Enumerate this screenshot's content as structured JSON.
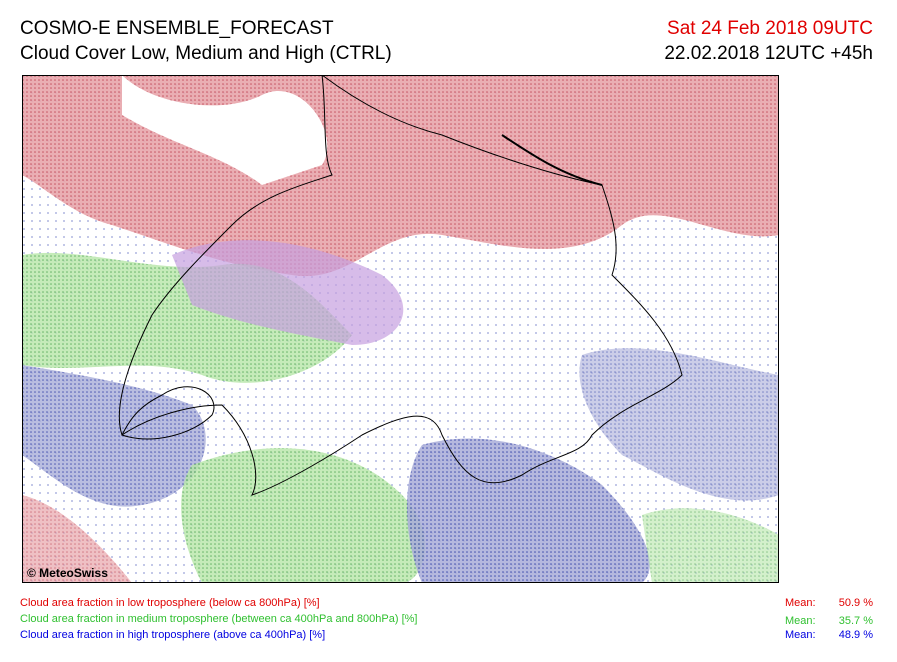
{
  "header": {
    "title": "COSMO-E ENSEMBLE_FORECAST",
    "subtitle": "Cloud Cover Low, Medium and High (CTRL)",
    "valid_time": "Sat 24 Feb 2018 09UTC",
    "run_time": "22.02.2018 12UTC +45h"
  },
  "map": {
    "credit": "© MeteoSwiss"
  },
  "legend": {
    "items": [
      {
        "label": "Cloud area fraction in low troposphere (below ca 800hPa) [%]",
        "mean_label": "Mean:",
        "mean": "50.9 %"
      },
      {
        "label": "Cloud area fraction in medium troposphere (between ca 400hPa and 800hPa) [%]",
        "mean_label": "Mean:",
        "mean": "35.7 %"
      },
      {
        "label": "Cloud area fraction in high troposphere (above ca 400hPa) [%]",
        "mean_label": "Mean:",
        "mean": "48.9 %"
      }
    ]
  }
}
